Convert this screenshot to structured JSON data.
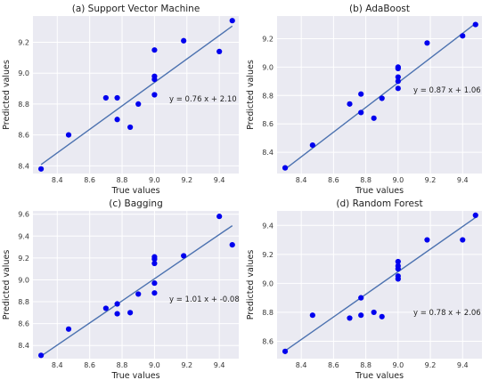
{
  "colors": {
    "panel_bg": "#EAEAF2",
    "grid": "#FFFFFF",
    "point": "#0000EE",
    "fit_line": "#4C72B0"
  },
  "chart_data": [
    {
      "type": "scatter",
      "title": "(a) Support Vector Machine",
      "xlabel": "True values",
      "ylabel": "Predicted values",
      "xlim": [
        8.25,
        9.52
      ],
      "ylim": [
        8.35,
        9.37
      ],
      "xticks": [
        8.4,
        8.6,
        8.8,
        9.0,
        9.2,
        9.4
      ],
      "yticks": [
        8.4,
        8.6,
        8.8,
        9.0,
        9.2
      ],
      "xticklabels": [
        "8.4",
        "8.6",
        "8.8",
        "9.0",
        "9.2",
        "9.4"
      ],
      "yticklabels": [
        "8.4",
        "8.6",
        "8.8",
        "9.0",
        "9.2"
      ],
      "grid": true,
      "points": [
        {
          "x": 8.3,
          "y": 8.38
        },
        {
          "x": 8.47,
          "y": 8.6
        },
        {
          "x": 8.7,
          "y": 8.84
        },
        {
          "x": 8.77,
          "y": 8.84
        },
        {
          "x": 8.77,
          "y": 8.7
        },
        {
          "x": 8.85,
          "y": 8.65
        },
        {
          "x": 8.9,
          "y": 8.8
        },
        {
          "x": 9.0,
          "y": 9.15
        },
        {
          "x": 9.0,
          "y": 8.98
        },
        {
          "x": 9.0,
          "y": 8.96
        },
        {
          "x": 9.0,
          "y": 8.86
        },
        {
          "x": 9.18,
          "y": 9.21
        },
        {
          "x": 9.4,
          "y": 9.14
        },
        {
          "x": 9.48,
          "y": 9.34
        }
      ],
      "fit": {
        "slope": 0.76,
        "intercept": 2.1,
        "x_range": [
          8.3,
          9.48
        ]
      },
      "equation": "y = 0.76 x + 2.10"
    },
    {
      "type": "scatter",
      "title": "(b) AdaBoost",
      "xlabel": "True values",
      "ylabel": "Predicted values",
      "xlim": [
        8.25,
        9.52
      ],
      "ylim": [
        8.25,
        9.36
      ],
      "xticks": [
        8.4,
        8.6,
        8.8,
        9.0,
        9.2,
        9.4
      ],
      "yticks": [
        8.4,
        8.6,
        8.8,
        9.0,
        9.2
      ],
      "xticklabels": [
        "8.4",
        "8.6",
        "8.8",
        "9.0",
        "9.2",
        "9.4"
      ],
      "yticklabels": [
        "8.4",
        "8.6",
        "8.8",
        "9.0",
        "9.2"
      ],
      "grid": true,
      "points": [
        {
          "x": 8.3,
          "y": 8.29
        },
        {
          "x": 8.47,
          "y": 8.45
        },
        {
          "x": 8.7,
          "y": 8.74
        },
        {
          "x": 8.77,
          "y": 8.81
        },
        {
          "x": 8.77,
          "y": 8.68
        },
        {
          "x": 8.85,
          "y": 8.64
        },
        {
          "x": 8.9,
          "y": 8.78
        },
        {
          "x": 9.0,
          "y": 9.0
        },
        {
          "x": 9.0,
          "y": 8.99
        },
        {
          "x": 9.0,
          "y": 8.93
        },
        {
          "x": 9.0,
          "y": 8.9
        },
        {
          "x": 9.0,
          "y": 8.85
        },
        {
          "x": 9.18,
          "y": 9.17
        },
        {
          "x": 9.4,
          "y": 9.22
        },
        {
          "x": 9.48,
          "y": 9.3
        }
      ],
      "fit": {
        "slope": 0.87,
        "intercept": 1.06,
        "x_range": [
          8.3,
          9.48
        ]
      },
      "equation": "y = 0.87 x + 1.06"
    },
    {
      "type": "scatter",
      "title": "(c) Bagging",
      "xlabel": "True values",
      "ylabel": "Predicted values",
      "xlim": [
        8.25,
        9.52
      ],
      "ylim": [
        8.28,
        9.63
      ],
      "xticks": [
        8.4,
        8.6,
        8.8,
        9.0,
        9.2,
        9.4
      ],
      "yticks": [
        8.4,
        8.6,
        8.8,
        9.0,
        9.2,
        9.4,
        9.6
      ],
      "xticklabels": [
        "8.4",
        "8.6",
        "8.8",
        "9.0",
        "9.2",
        "9.4"
      ],
      "yticklabels": [
        "8.4",
        "8.6",
        "8.8",
        "9.0",
        "9.2",
        "9.4",
        "9.6"
      ],
      "grid": true,
      "points": [
        {
          "x": 8.3,
          "y": 8.31
        },
        {
          "x": 8.47,
          "y": 8.55
        },
        {
          "x": 8.7,
          "y": 8.74
        },
        {
          "x": 8.77,
          "y": 8.78
        },
        {
          "x": 8.77,
          "y": 8.69
        },
        {
          "x": 8.85,
          "y": 8.7
        },
        {
          "x": 8.9,
          "y": 8.87
        },
        {
          "x": 9.0,
          "y": 9.21
        },
        {
          "x": 9.0,
          "y": 9.19
        },
        {
          "x": 9.0,
          "y": 9.15
        },
        {
          "x": 9.0,
          "y": 8.97
        },
        {
          "x": 9.0,
          "y": 8.88
        },
        {
          "x": 9.18,
          "y": 9.22
        },
        {
          "x": 9.4,
          "y": 9.58
        },
        {
          "x": 9.48,
          "y": 9.32
        }
      ],
      "fit": {
        "slope": 1.01,
        "intercept": -0.08,
        "x_range": [
          8.3,
          9.48
        ]
      },
      "equation": "y = 1.01 x + -0.08"
    },
    {
      "type": "scatter",
      "title": "(d) Random Forest",
      "xlabel": "True values",
      "ylabel": "Predicted values",
      "xlim": [
        8.25,
        9.52
      ],
      "ylim": [
        8.48,
        9.5
      ],
      "xticks": [
        8.4,
        8.6,
        8.8,
        9.0,
        9.2,
        9.4
      ],
      "yticks": [
        8.6,
        8.8,
        9.0,
        9.2,
        9.4
      ],
      "xticklabels": [
        "8.4",
        "8.6",
        "8.8",
        "9.0",
        "9.2",
        "9.4"
      ],
      "yticklabels": [
        "8.6",
        "8.8",
        "9.0",
        "9.2",
        "9.4"
      ],
      "grid": true,
      "points": [
        {
          "x": 8.3,
          "y": 8.53
        },
        {
          "x": 8.47,
          "y": 8.78
        },
        {
          "x": 8.7,
          "y": 8.76
        },
        {
          "x": 8.77,
          "y": 8.9
        },
        {
          "x": 8.77,
          "y": 8.78
        },
        {
          "x": 8.85,
          "y": 8.8
        },
        {
          "x": 8.9,
          "y": 8.77
        },
        {
          "x": 9.0,
          "y": 9.15
        },
        {
          "x": 9.0,
          "y": 9.12
        },
        {
          "x": 9.0,
          "y": 9.1
        },
        {
          "x": 9.0,
          "y": 9.05
        },
        {
          "x": 9.0,
          "y": 9.03
        },
        {
          "x": 9.18,
          "y": 9.3
        },
        {
          "x": 9.4,
          "y": 9.3
        },
        {
          "x": 9.48,
          "y": 9.47
        }
      ],
      "fit": {
        "slope": 0.78,
        "intercept": 2.06,
        "x_range": [
          8.3,
          9.48
        ]
      },
      "equation": "y = 0.78 x + 2.06"
    }
  ]
}
